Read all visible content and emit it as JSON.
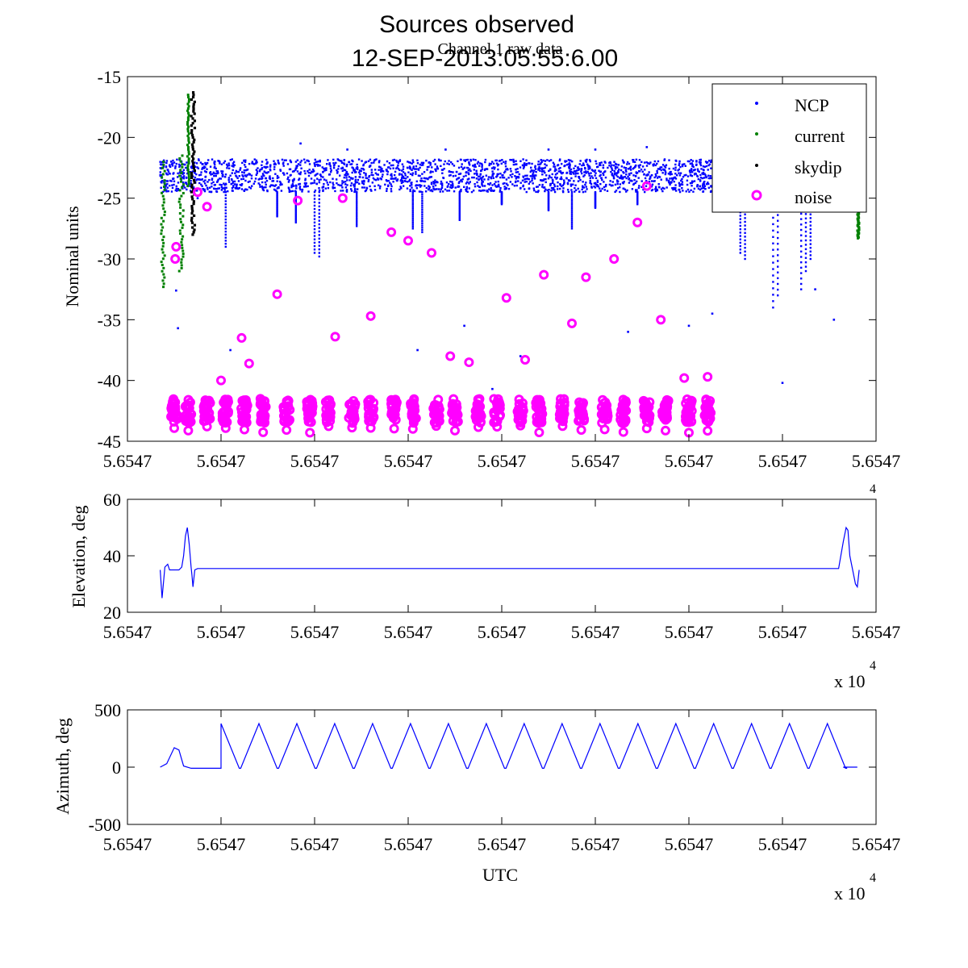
{
  "figure": {
    "title": "Sources observed",
    "date": "12-SEP-2013:05:55:6.00"
  },
  "colors": {
    "ncp": "#0000ff",
    "current": "#008000",
    "skydip": "#000000",
    "noise": "#ff00ff",
    "line": "#0000ff"
  },
  "chart_data": [
    {
      "type": "scatter",
      "subtitle": "Channel 1 raw data",
      "ylabel": "Nominal units",
      "xlabel": "",
      "ylim": [
        -45,
        -15
      ],
      "xlim": [
        0,
        8
      ],
      "x_tick_labels": [
        "5.6547",
        "5.6547",
        "5.6547",
        "5.6547",
        "5.6547",
        "5.6547",
        "5.6547",
        "5.6547",
        "5.6547"
      ],
      "y_ticks": [
        -45,
        -40,
        -35,
        -30,
        -25,
        -20,
        -15
      ],
      "legend": {
        "position": "top-right",
        "entries": [
          "NCP",
          "current",
          "skydip",
          "noise"
        ]
      },
      "series": [
        {
          "name": "NCP",
          "marker": "dot",
          "ncp_band": {
            "x": [
              0.35,
              7.5
            ],
            "y": [
              -24.5,
              -21.8
            ]
          },
          "dips": [
            {
              "x": 1.05,
              "y": -29.0
            },
            {
              "x": 1.6,
              "y": -26.5
            },
            {
              "x": 1.8,
              "y": -27.0
            },
            {
              "x": 2.0,
              "y": -29.5
            },
            {
              "x": 2.05,
              "y": -29.8
            },
            {
              "x": 2.45,
              "y": -27.3
            },
            {
              "x": 3.05,
              "y": -27.5
            },
            {
              "x": 3.15,
              "y": -27.8
            },
            {
              "x": 3.55,
              "y": -26.8
            },
            {
              "x": 4.0,
              "y": -25.5
            },
            {
              "x": 4.5,
              "y": -26.0
            },
            {
              "x": 4.75,
              "y": -27.5
            },
            {
              "x": 5.0,
              "y": -25.8
            },
            {
              "x": 5.45,
              "y": -25.5
            },
            {
              "x": 6.55,
              "y": -29.5
            },
            {
              "x": 6.6,
              "y": -30.0
            },
            {
              "x": 6.9,
              "y": -34.0
            },
            {
              "x": 6.95,
              "y": -33.0
            },
            {
              "x": 7.2,
              "y": -32.5
            },
            {
              "x": 7.25,
              "y": -31.0
            },
            {
              "x": 7.3,
              "y": -30.0
            }
          ],
          "outliers": [
            {
              "x": 0.52,
              "y": -32.6
            },
            {
              "x": 0.54,
              "y": -35.7
            },
            {
              "x": 0.75,
              "y": -25.0
            },
            {
              "x": 0.8,
              "y": -22.2
            },
            {
              "x": 1.1,
              "y": -37.5
            },
            {
              "x": 1.85,
              "y": -20.5
            },
            {
              "x": 2.35,
              "y": -21.0
            },
            {
              "x": 3.1,
              "y": -37.5
            },
            {
              "x": 3.4,
              "y": -21.0
            },
            {
              "x": 3.6,
              "y": -35.5
            },
            {
              "x": 3.9,
              "y": -40.7
            },
            {
              "x": 4.2,
              "y": -38.0
            },
            {
              "x": 4.5,
              "y": -21.0
            },
            {
              "x": 5.0,
              "y": -21.0
            },
            {
              "x": 5.35,
              "y": -36.0
            },
            {
              "x": 5.55,
              "y": -20.8
            },
            {
              "x": 6.0,
              "y": -35.5
            },
            {
              "x": 6.25,
              "y": -34.5
            },
            {
              "x": 6.6,
              "y": -21.0
            },
            {
              "x": 7.0,
              "y": -40.2
            },
            {
              "x": 7.35,
              "y": -32.5
            },
            {
              "x": 7.55,
              "y": -35.0
            }
          ]
        },
        {
          "name": "current",
          "marker": "dot",
          "segments": [
            {
              "x": [
                0.36,
                0.4
              ],
              "y": [
                -32.3,
                -22.0
              ]
            },
            {
              "x": [
                0.55,
                0.6
              ],
              "y": [
                -31.0,
                -21.5
              ]
            },
            {
              "x": [
                0.64,
                0.66
              ],
              "y": [
                -24.0,
                -16.5
              ]
            },
            {
              "x": [
                7.8,
                7.82
              ],
              "y": [
                -28.3,
                -25.5
              ]
            }
          ]
        },
        {
          "name": "skydip",
          "marker": "dot",
          "segments": [
            {
              "x": [
                0.68,
                0.72
              ],
              "y": [
                -28.0,
                -16.3
              ]
            }
          ]
        },
        {
          "name": "noise",
          "marker": "circle",
          "isolated": [
            {
              "x": 0.52,
              "y": -29.0
            },
            {
              "x": 0.51,
              "y": -30.0
            },
            {
              "x": 0.75,
              "y": -24.5
            },
            {
              "x": 0.85,
              "y": -25.7
            },
            {
              "x": 1.0,
              "y": -40.0
            },
            {
              "x": 1.22,
              "y": -36.5
            },
            {
              "x": 1.3,
              "y": -38.6
            },
            {
              "x": 1.6,
              "y": -32.9
            },
            {
              "x": 1.82,
              "y": -25.2
            },
            {
              "x": 2.22,
              "y": -36.4
            },
            {
              "x": 2.3,
              "y": -25.0
            },
            {
              "x": 2.6,
              "y": -34.7
            },
            {
              "x": 2.82,
              "y": -27.8
            },
            {
              "x": 3.0,
              "y": -28.5
            },
            {
              "x": 3.25,
              "y": -29.5
            },
            {
              "x": 3.45,
              "y": -38.0
            },
            {
              "x": 3.65,
              "y": -38.5
            },
            {
              "x": 4.05,
              "y": -33.2
            },
            {
              "x": 4.25,
              "y": -38.3
            },
            {
              "x": 4.45,
              "y": -31.3
            },
            {
              "x": 4.75,
              "y": -35.3
            },
            {
              "x": 4.9,
              "y": -31.5
            },
            {
              "x": 5.2,
              "y": -30.0
            },
            {
              "x": 5.45,
              "y": -27.0
            },
            {
              "x": 5.55,
              "y": -24.0
            },
            {
              "x": 5.7,
              "y": -35.0
            },
            {
              "x": 5.95,
              "y": -39.8
            },
            {
              "x": 6.2,
              "y": -39.7
            }
          ],
          "clusters_x": [
            0.5,
            0.65,
            0.85,
            1.05,
            1.25,
            1.45,
            1.7,
            1.95,
            2.15,
            2.4,
            2.6,
            2.85,
            3.05,
            3.3,
            3.5,
            3.75,
            3.95,
            4.2,
            4.4,
            4.65,
            4.85,
            5.1,
            5.3,
            5.55,
            5.75,
            6.0,
            6.2
          ],
          "cluster_y": [
            -43.5,
            -41.5
          ]
        }
      ]
    },
    {
      "type": "line",
      "ylabel": "Elevation, deg",
      "xlabel": "",
      "ylim": [
        20,
        60
      ],
      "xlim": [
        0,
        8
      ],
      "y_ticks": [
        20,
        40,
        60
      ],
      "x_tick_labels": [
        "5.6547",
        "5.6547",
        "5.6547",
        "5.6547",
        "5.6547",
        "5.6547",
        "5.6547",
        "5.6547",
        "5.6547"
      ],
      "exponent_label": "x 10",
      "exponent_power": "4",
      "x": [
        0.35,
        0.37,
        0.4,
        0.43,
        0.45,
        0.5,
        0.55,
        0.58,
        0.6,
        0.62,
        0.64,
        0.66,
        0.68,
        0.69,
        0.7,
        0.72,
        0.75,
        0.8,
        1.0,
        2.0,
        3.0,
        4.0,
        5.0,
        6.0,
        7.0,
        7.6,
        7.65,
        7.68,
        7.7,
        7.72,
        7.75,
        7.78,
        7.8,
        7.82
      ],
      "y": [
        35,
        25,
        36,
        37,
        35,
        35,
        35,
        36,
        40,
        47,
        50,
        44,
        36,
        33,
        29,
        35,
        35.5,
        35.5,
        35.5,
        35.5,
        35.5,
        35.5,
        35.5,
        35.5,
        35.5,
        35.5,
        45,
        50,
        49,
        40,
        35,
        30,
        29,
        35
      ]
    },
    {
      "type": "line",
      "ylabel": "Azimuth, deg",
      "xlabel": "UTC",
      "ylim": [
        -500,
        500
      ],
      "xlim": [
        0,
        8
      ],
      "y_ticks": [
        -500,
        0,
        500
      ],
      "x_tick_labels": [
        "5.6547",
        "5.6547",
        "5.6547",
        "5.6547",
        "5.6547",
        "5.6547",
        "5.6547",
        "5.6547",
        "5.6547"
      ],
      "exponent_label": "x 10",
      "exponent_power": "4",
      "x_start": 0.35,
      "x_end": 7.8,
      "sawtooth": {
        "first_peak_x": 1.0,
        "period": 0.405,
        "peak": 380,
        "trough": -10,
        "cycles": 17
      },
      "bump": {
        "x": [
          0.35,
          0.42,
          0.5,
          0.55,
          0.6,
          0.68,
          1.0
        ],
        "y": [
          0,
          30,
          170,
          150,
          10,
          -10,
          -10
        ]
      }
    }
  ]
}
